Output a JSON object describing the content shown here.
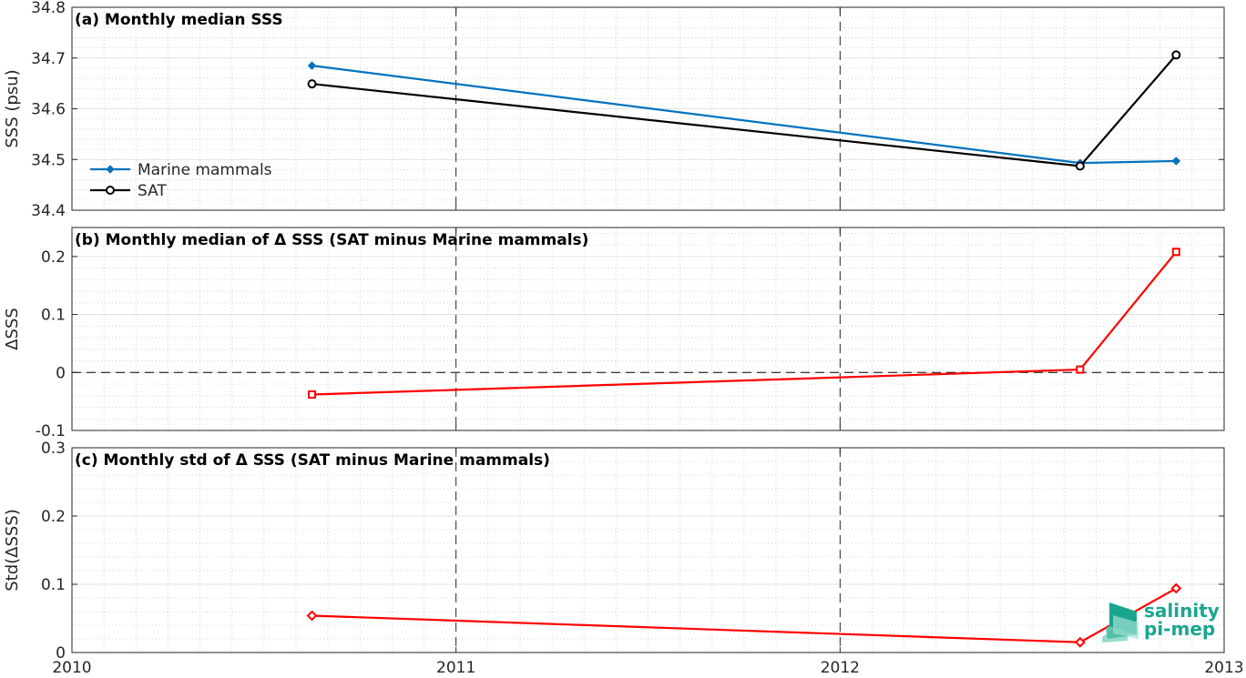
{
  "chart_data": [
    {
      "type": "line",
      "title": "(a) Monthly median SSS",
      "ylabel": "SSS (psu)",
      "xlabel": "",
      "xlim": [
        2010,
        2013
      ],
      "xticks": [
        2010,
        2011,
        2012,
        2013
      ],
      "ylim": [
        34.4,
        34.8
      ],
      "yticks": [
        34.4,
        34.5,
        34.6,
        34.7,
        34.8
      ],
      "ytick_labels": [
        "34.4",
        "34.5",
        "34.6",
        "34.7",
        "34.8"
      ],
      "grid": true,
      "legend_position": "left",
      "series": [
        {
          "name": "Marine mammals",
          "color": "#0072bd",
          "marker": "filled-diamond",
          "x": [
            2010.625,
            2012.625,
            2012.875
          ],
          "y": [
            34.685,
            34.493,
            34.497
          ]
        },
        {
          "name": "SAT",
          "color": "#000000",
          "marker": "circle",
          "x": [
            2010.625,
            2012.625,
            2012.875
          ],
          "y": [
            34.649,
            34.487,
            34.706
          ]
        }
      ]
    },
    {
      "type": "line",
      "title": "(b) Monthly median of Δ SSS (SAT minus Marine mammals)",
      "ylabel": "ΔSSS",
      "xlabel": "",
      "xlim": [
        2010,
        2013
      ],
      "xticks": [
        2010,
        2011,
        2012,
        2013
      ],
      "ylim": [
        -0.1,
        0.25
      ],
      "yticks": [
        -0.1,
        0,
        0.1,
        0.2
      ],
      "ytick_labels": [
        "-0.1",
        "0",
        "0.1",
        "0.2"
      ],
      "grid": true,
      "zero_line": true,
      "series": [
        {
          "color": "#ff0000",
          "marker": "square",
          "x": [
            2010.625,
            2012.625,
            2012.875
          ],
          "y": [
            -0.038,
            0.005,
            0.208
          ]
        }
      ]
    },
    {
      "type": "line",
      "title": "(c) Monthly std of Δ SSS (SAT minus Marine mammals)",
      "ylabel": "Std(ΔSSS)",
      "xlabel": "",
      "xlim": [
        2010,
        2013
      ],
      "xticks": [
        2010,
        2011,
        2012,
        2013
      ],
      "xtick_labels": [
        "2010",
        "2011",
        "2012",
        "2013"
      ],
      "ylim": [
        0,
        0.3
      ],
      "yticks": [
        0,
        0.1,
        0.2,
        0.3
      ],
      "ytick_labels": [
        "0",
        "0.1",
        "0.2",
        "0.3"
      ],
      "grid": true,
      "series": [
        {
          "color": "#ff0000",
          "marker": "diamond",
          "x": [
            2010.625,
            2012.625,
            2012.875
          ],
          "y": [
            0.054,
            0.015,
            0.094
          ]
        }
      ]
    }
  ],
  "logo": {
    "line1": "salinity",
    "line2": "pi-mep",
    "color": "#1aa58f"
  }
}
